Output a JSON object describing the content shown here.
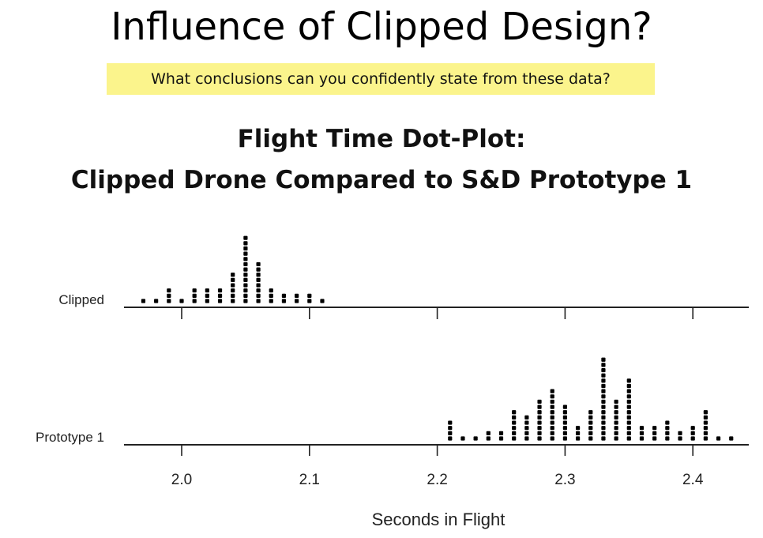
{
  "slide": {
    "title": "Influence of Clipped Design?",
    "question": "What conclusions can you confidently state from these data?"
  },
  "colors": {
    "highlight": "#fbf48c",
    "dots": "#000000"
  },
  "chart_data": {
    "type": "scatter",
    "subtype": "dot-plot",
    "title": [
      "Flight Time Dot-Plot:",
      "Clipped Drone Compared to S&D Prototype 1"
    ],
    "xlabel": "Seconds in Flight",
    "ylabel": "",
    "xlim": [
      1.955,
      2.445
    ],
    "xticks": [
      2.0,
      2.1,
      2.2,
      2.3,
      2.4
    ],
    "xtick_labels": [
      "2.0",
      "2.1",
      "2.2",
      "2.3",
      "2.4"
    ],
    "grid": false,
    "series": [
      {
        "name": "Clipped",
        "x": [
          1.97,
          1.98,
          1.99,
          2.0,
          2.01,
          2.02,
          2.03,
          2.04,
          2.05,
          2.06,
          2.07,
          2.08,
          2.09,
          2.1,
          2.11
        ],
        "counts": [
          1,
          1,
          3,
          1,
          3,
          3,
          3,
          6,
          13,
          8,
          3,
          2,
          2,
          2,
          1
        ]
      },
      {
        "name": "Prototype 1",
        "x": [
          2.21,
          2.22,
          2.23,
          2.24,
          2.25,
          2.26,
          2.27,
          2.28,
          2.29,
          2.3,
          2.31,
          2.32,
          2.33,
          2.34,
          2.35,
          2.36,
          2.37,
          2.38,
          2.39,
          2.4,
          2.41,
          2.42,
          2.43
        ],
        "counts": [
          4,
          1,
          1,
          2,
          2,
          6,
          5,
          8,
          10,
          7,
          3,
          6,
          16,
          8,
          12,
          3,
          3,
          4,
          2,
          3,
          6,
          1,
          1
        ]
      }
    ]
  }
}
